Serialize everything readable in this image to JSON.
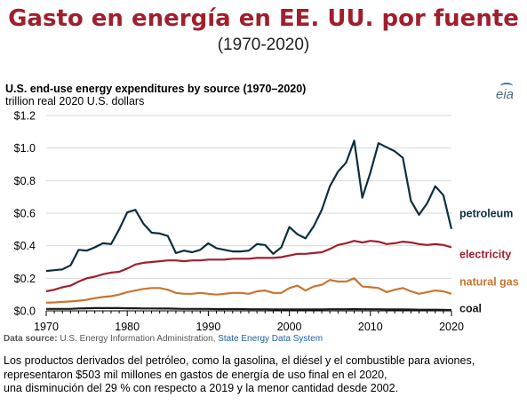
{
  "header": {
    "title": "Gasto en energía en EE. UU. por fuente",
    "subtitle": "(1970-2020)"
  },
  "chart_header": {
    "title": "U.S. end-use energy expenditures by source (1970–2020)",
    "units": "trillion real 2020 U.S. dollars"
  },
  "logo": {
    "text": "eia"
  },
  "source": {
    "label": "Data source:",
    "text": " U.S. Energy Information Administration, ",
    "link": "State Energy Data System"
  },
  "footer": {
    "lines": [
      "Los productos derivados del petróleo, como la gasolina, el diésel y el combustible para aviones,",
      "representaron $503 mil millones en gastos de energía de uso final en el 2020,",
      "una disminución del 29 % con respecto a 2019 y la menor cantidad desde 2002."
    ]
  },
  "colors": {
    "petroleum": "#0d2e3f",
    "electricity": "#a01f2d",
    "natural_gas": "#c9752f",
    "coal": "#1a1a1a",
    "grid": "#d9d9d9",
    "title": "#a01f2d"
  },
  "chart_data": {
    "type": "line",
    "x": [
      1970,
      1971,
      1972,
      1973,
      1974,
      1975,
      1976,
      1977,
      1978,
      1979,
      1980,
      1981,
      1982,
      1983,
      1984,
      1985,
      1986,
      1987,
      1988,
      1989,
      1990,
      1991,
      1992,
      1993,
      1994,
      1995,
      1996,
      1997,
      1998,
      1999,
      2000,
      2001,
      2002,
      2003,
      2004,
      2005,
      2006,
      2007,
      2008,
      2009,
      2010,
      2011,
      2012,
      2013,
      2014,
      2015,
      2016,
      2017,
      2018,
      2019,
      2020
    ],
    "xticks": [
      1970,
      1980,
      1990,
      2000,
      2010,
      2020
    ],
    "yticks": [
      0.0,
      0.2,
      0.4,
      0.6,
      0.8,
      1.0,
      1.2
    ],
    "ytick_labels": [
      "$0.0",
      "$0.2",
      "$0.4",
      "$0.6",
      "$0.8",
      "$1.0",
      "$1.2"
    ],
    "xlim": [
      1970,
      2020
    ],
    "ylim": [
      0,
      1.2
    ],
    "grid": "horizontal",
    "legend": "inline-right",
    "series": [
      {
        "name": "petroleum",
        "color": "#0d2e3f",
        "values": [
          0.245,
          0.25,
          0.255,
          0.28,
          0.375,
          0.37,
          0.39,
          0.415,
          0.41,
          0.5,
          0.605,
          0.62,
          0.535,
          0.48,
          0.475,
          0.46,
          0.355,
          0.37,
          0.36,
          0.375,
          0.415,
          0.385,
          0.375,
          0.365,
          0.365,
          0.37,
          0.41,
          0.405,
          0.35,
          0.39,
          0.515,
          0.47,
          0.445,
          0.52,
          0.62,
          0.765,
          0.855,
          0.91,
          1.045,
          0.695,
          0.85,
          1.03,
          1.005,
          0.98,
          0.94,
          0.675,
          0.59,
          0.66,
          0.765,
          0.71,
          0.503
        ]
      },
      {
        "name": "electricity",
        "color": "#a01f2d",
        "values": [
          0.12,
          0.13,
          0.145,
          0.155,
          0.18,
          0.2,
          0.21,
          0.225,
          0.235,
          0.24,
          0.26,
          0.285,
          0.295,
          0.3,
          0.305,
          0.31,
          0.31,
          0.305,
          0.31,
          0.31,
          0.315,
          0.315,
          0.315,
          0.32,
          0.32,
          0.32,
          0.325,
          0.325,
          0.325,
          0.33,
          0.34,
          0.35,
          0.35,
          0.355,
          0.36,
          0.38,
          0.405,
          0.415,
          0.43,
          0.42,
          0.43,
          0.425,
          0.41,
          0.415,
          0.425,
          0.42,
          0.41,
          0.405,
          0.41,
          0.405,
          0.39
        ]
      },
      {
        "name": "natural gas",
        "color": "#c9752f",
        "values": [
          0.05,
          0.052,
          0.055,
          0.058,
          0.062,
          0.068,
          0.078,
          0.085,
          0.09,
          0.1,
          0.115,
          0.125,
          0.135,
          0.14,
          0.14,
          0.13,
          0.11,
          0.105,
          0.105,
          0.11,
          0.105,
          0.1,
          0.105,
          0.11,
          0.11,
          0.105,
          0.12,
          0.125,
          0.11,
          0.11,
          0.14,
          0.155,
          0.125,
          0.15,
          0.16,
          0.19,
          0.18,
          0.18,
          0.2,
          0.15,
          0.145,
          0.14,
          0.115,
          0.13,
          0.14,
          0.12,
          0.105,
          0.115,
          0.125,
          0.12,
          0.105
        ]
      },
      {
        "name": "coal",
        "color": "#1a1a1a",
        "values": [
          0.012,
          0.012,
          0.012,
          0.012,
          0.015,
          0.016,
          0.017,
          0.017,
          0.017,
          0.017,
          0.016,
          0.016,
          0.015,
          0.015,
          0.014,
          0.014,
          0.013,
          0.012,
          0.012,
          0.012,
          0.012,
          0.011,
          0.011,
          0.011,
          0.011,
          0.01,
          0.01,
          0.01,
          0.009,
          0.009,
          0.009,
          0.009,
          0.009,
          0.009,
          0.009,
          0.01,
          0.01,
          0.01,
          0.011,
          0.01,
          0.01,
          0.01,
          0.009,
          0.009,
          0.009,
          0.008,
          0.007,
          0.007,
          0.007,
          0.006,
          0.005
        ]
      }
    ]
  }
}
